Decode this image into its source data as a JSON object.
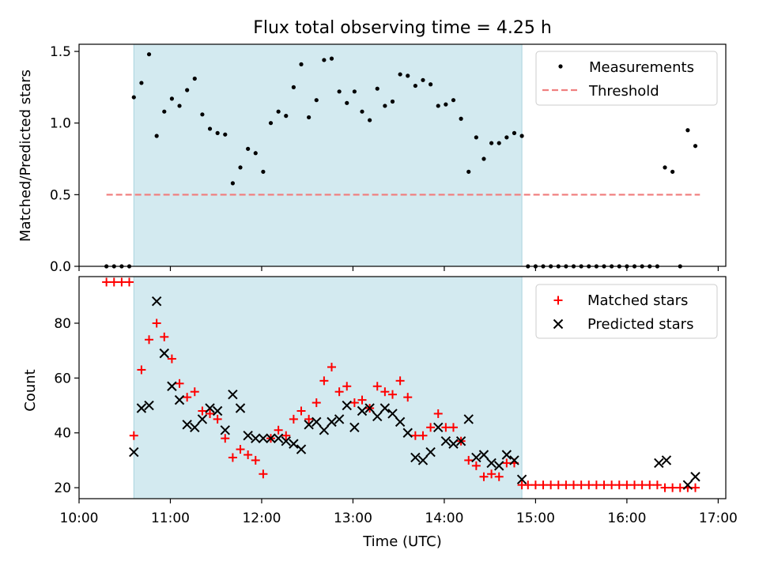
{
  "colors": {
    "shade": "#d3eaf0",
    "threshold": "#f08080",
    "matched": "#ff0000",
    "predicted": "#000000",
    "measurements": "#000000"
  },
  "chart_data": [
    {
      "type": "scatter",
      "title": "Flux total observing time = 4.25 h",
      "ylabel": "Matched/Predicted stars",
      "xlim": [
        "10:00",
        "17:05"
      ],
      "ylim": [
        0,
        1.55
      ],
      "yticks": [
        "0.0",
        "0.5",
        "1.0",
        "1.5"
      ],
      "shaded_span": [
        "10:36",
        "14:51"
      ],
      "legend": {
        "placement": "top-right",
        "entries": [
          "Measurements",
          "Threshold"
        ]
      },
      "threshold": {
        "name": "Threshold",
        "value": 0.5,
        "x": [
          "10:18",
          "16:48"
        ]
      },
      "series": [
        {
          "name": "Measurements",
          "x": [
            "10:18",
            "10:23",
            "10:28",
            "10:33",
            "10:36",
            "10:41",
            "10:46",
            "10:51",
            "10:56",
            "11:01",
            "11:06",
            "11:11",
            "11:16",
            "11:21",
            "11:26",
            "11:31",
            "11:36",
            "11:41",
            "11:46",
            "11:51",
            "11:56",
            "12:01",
            "12:06",
            "12:11",
            "12:16",
            "12:21",
            "12:26",
            "12:31",
            "12:36",
            "12:41",
            "12:46",
            "12:51",
            "12:56",
            "13:01",
            "13:06",
            "13:11",
            "13:16",
            "13:21",
            "13:26",
            "13:31",
            "13:36",
            "13:41",
            "13:46",
            "13:51",
            "13:56",
            "14:01",
            "14:06",
            "14:11",
            "14:16",
            "14:21",
            "14:26",
            "14:31",
            "14:36",
            "14:41",
            "14:46",
            "14:51",
            "14:55",
            "15:00",
            "15:05",
            "15:10",
            "15:15",
            "15:20",
            "15:25",
            "15:30",
            "15:35",
            "15:40",
            "15:45",
            "15:50",
            "15:55",
            "16:00",
            "16:05",
            "16:10",
            "16:15",
            "16:20",
            "16:25",
            "16:30",
            "16:35",
            "16:40",
            "16:45"
          ],
          "y": [
            0.0,
            0.0,
            0.0,
            0.0,
            1.18,
            1.28,
            1.48,
            0.91,
            1.08,
            1.17,
            1.12,
            1.23,
            1.31,
            1.06,
            0.96,
            0.93,
            0.92,
            0.58,
            0.69,
            0.82,
            0.79,
            0.66,
            1.0,
            1.08,
            1.05,
            1.25,
            1.41,
            1.04,
            1.16,
            1.44,
            1.45,
            1.22,
            1.14,
            1.22,
            1.08,
            1.02,
            1.24,
            1.12,
            1.15,
            1.34,
            1.33,
            1.26,
            1.3,
            1.27,
            1.12,
            1.13,
            1.16,
            1.03,
            0.66,
            0.9,
            0.75,
            0.86,
            0.86,
            0.9,
            0.93,
            0.91,
            0.0,
            0.0,
            0.0,
            0.0,
            0.0,
            0.0,
            0.0,
            0.0,
            0.0,
            0.0,
            0.0,
            0.0,
            0.0,
            0.0,
            0.0,
            0.0,
            0.0,
            0.0,
            0.69,
            0.66,
            0.0,
            0.95,
            0.84
          ]
        }
      ]
    },
    {
      "type": "scatter",
      "xlabel": "Time (UTC)",
      "ylabel": "Count",
      "xlim": [
        "10:00",
        "17:05"
      ],
      "xticks": [
        "10:00",
        "11:00",
        "12:00",
        "13:00",
        "14:00",
        "15:00",
        "16:00",
        "17:00"
      ],
      "ylim": [
        16,
        97
      ],
      "yticks": [
        "20",
        "40",
        "60",
        "80"
      ],
      "shaded_span": [
        "10:36",
        "14:51"
      ],
      "legend": {
        "placement": "top-right",
        "entries": [
          "Matched stars",
          "Predicted stars"
        ]
      },
      "series": [
        {
          "name": "Matched stars",
          "x": [
            "10:18",
            "10:23",
            "10:28",
            "10:33",
            "10:36",
            "10:41",
            "10:46",
            "10:51",
            "10:56",
            "11:01",
            "11:06",
            "11:11",
            "11:16",
            "11:21",
            "11:26",
            "11:31",
            "11:36",
            "11:41",
            "11:46",
            "11:51",
            "11:56",
            "12:01",
            "12:06",
            "12:11",
            "12:16",
            "12:21",
            "12:26",
            "12:31",
            "12:36",
            "12:41",
            "12:46",
            "12:51",
            "12:56",
            "13:01",
            "13:06",
            "13:11",
            "13:16",
            "13:21",
            "13:26",
            "13:31",
            "13:36",
            "13:41",
            "13:46",
            "13:51",
            "13:56",
            "14:01",
            "14:06",
            "14:11",
            "14:16",
            "14:21",
            "14:26",
            "14:31",
            "14:36",
            "14:41",
            "14:46",
            "14:51",
            "14:55",
            "15:00",
            "15:05",
            "15:10",
            "15:15",
            "15:20",
            "15:25",
            "15:30",
            "15:35",
            "15:40",
            "15:45",
            "15:50",
            "15:55",
            "16:00",
            "16:05",
            "16:10",
            "16:15",
            "16:20",
            "16:25",
            "16:30",
            "16:35",
            "16:40",
            "16:45"
          ],
          "y": [
            95,
            95,
            95,
            95,
            39,
            63,
            74,
            80,
            75,
            67,
            58,
            53,
            55,
            48,
            47,
            45,
            38,
            31,
            34,
            32,
            30,
            25,
            38,
            41,
            39,
            45,
            48,
            45,
            51,
            59,
            64,
            55,
            57,
            51,
            52,
            49,
            57,
            55,
            54,
            59,
            53,
            39,
            39,
            42,
            47,
            42,
            42,
            37,
            30,
            28,
            24,
            25,
            24,
            29,
            29,
            21,
            21,
            21,
            21,
            21,
            21,
            21,
            21,
            21,
            21,
            21,
            21,
            21,
            21,
            21,
            21,
            21,
            21,
            21,
            20,
            20,
            20,
            20,
            20
          ]
        },
        {
          "name": "Predicted stars",
          "x": [
            "10:36",
            "10:41",
            "10:46",
            "10:51",
            "10:56",
            "11:01",
            "11:06",
            "11:11",
            "11:16",
            "11:21",
            "11:26",
            "11:31",
            "11:36",
            "11:41",
            "11:46",
            "11:51",
            "11:56",
            "12:01",
            "12:06",
            "12:11",
            "12:16",
            "12:21",
            "12:26",
            "12:31",
            "12:36",
            "12:41",
            "12:46",
            "12:51",
            "12:56",
            "13:01",
            "13:06",
            "13:11",
            "13:16",
            "13:21",
            "13:26",
            "13:31",
            "13:36",
            "13:41",
            "13:46",
            "13:51",
            "13:56",
            "14:01",
            "14:06",
            "14:11",
            "14:16",
            "14:21",
            "14:26",
            "14:31",
            "14:36",
            "14:41",
            "14:46",
            "14:51",
            "16:21",
            "16:26",
            "16:40",
            "16:45"
          ],
          "y": [
            33,
            49,
            50,
            88,
            69,
            57,
            52,
            43,
            42,
            45,
            49,
            48,
            41,
            54,
            49,
            39,
            38,
            38,
            38,
            38,
            37,
            36,
            34,
            43,
            44,
            41,
            44,
            45,
            50,
            42,
            48,
            49,
            46,
            49,
            47,
            44,
            40,
            31,
            30,
            33,
            42,
            37,
            36,
            37,
            45,
            31,
            32,
            29,
            28,
            32,
            30,
            23,
            29,
            30,
            21,
            24
          ]
        }
      ]
    }
  ]
}
